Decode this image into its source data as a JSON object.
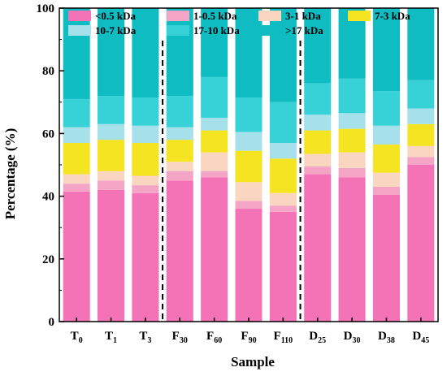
{
  "chart_data": {
    "type": "bar",
    "stacked": true,
    "categories": [
      {
        "main": "T",
        "sub": "0"
      },
      {
        "main": "T",
        "sub": "1"
      },
      {
        "main": "T",
        "sub": "3"
      },
      {
        "main": "F",
        "sub": "30"
      },
      {
        "main": "F",
        "sub": "60"
      },
      {
        "main": "F",
        "sub": "90"
      },
      {
        "main": "F",
        "sub": "110"
      },
      {
        "main": "D",
        "sub": "25"
      },
      {
        "main": "D",
        "sub": "30"
      },
      {
        "main": "D",
        "sub": "38"
      },
      {
        "main": "D",
        "sub": "45"
      }
    ],
    "series": [
      {
        "name": "<0.5 kDa",
        "color": "#f472b6",
        "values": [
          41.5,
          42,
          41,
          45,
          46,
          36,
          35,
          47,
          46,
          40.5,
          50
        ]
      },
      {
        "name": "1-0.5 kDa",
        "color": "#f4a4c4",
        "values": [
          2.5,
          3,
          2.5,
          3,
          2,
          2.5,
          2,
          2.5,
          3,
          2.5,
          2.5
        ]
      },
      {
        "name": "3-1 kDa",
        "color": "#fad5c0",
        "values": [
          3,
          3,
          3,
          3,
          6,
          6,
          4,
          4,
          5,
          4.5,
          3.5
        ]
      },
      {
        "name": "7-3 kDa",
        "color": "#f5e421",
        "values": [
          10,
          10,
          10.5,
          7,
          7,
          10,
          11,
          7.5,
          7.5,
          9,
          7
        ]
      },
      {
        "name": "10-7 kDa",
        "color": "#a6e0ea",
        "values": [
          5,
          5,
          5.5,
          4,
          4,
          6,
          5,
          5,
          5,
          6,
          5
        ]
      },
      {
        "name": "17-10 kDa",
        "color": "#36d2d8",
        "values": [
          9,
          9,
          9,
          10,
          13,
          11,
          13,
          10,
          11,
          11,
          9
        ]
      },
      {
        "name": ">17 kDa",
        "color": "#0fbcc2",
        "values": [
          29,
          28,
          28.5,
          28,
          22,
          28.5,
          30,
          24,
          22.5,
          26.5,
          23
        ]
      }
    ],
    "legend_labels": [
      "<0.5 kDa",
      "1-0.5 kDa",
      "3-1 kDa",
      "7-3 kDa",
      "10-7 kDa",
      "17-10 kDa",
      ">17 kDa"
    ],
    "xlabel": "Sample",
    "ylabel": "Percentage (%)",
    "ylim": [
      0,
      100
    ],
    "yticks": [
      0,
      20,
      40,
      60,
      80,
      100
    ],
    "group_separators_after": [
      2,
      6
    ],
    "legend_position": "top",
    "grid": false
  }
}
